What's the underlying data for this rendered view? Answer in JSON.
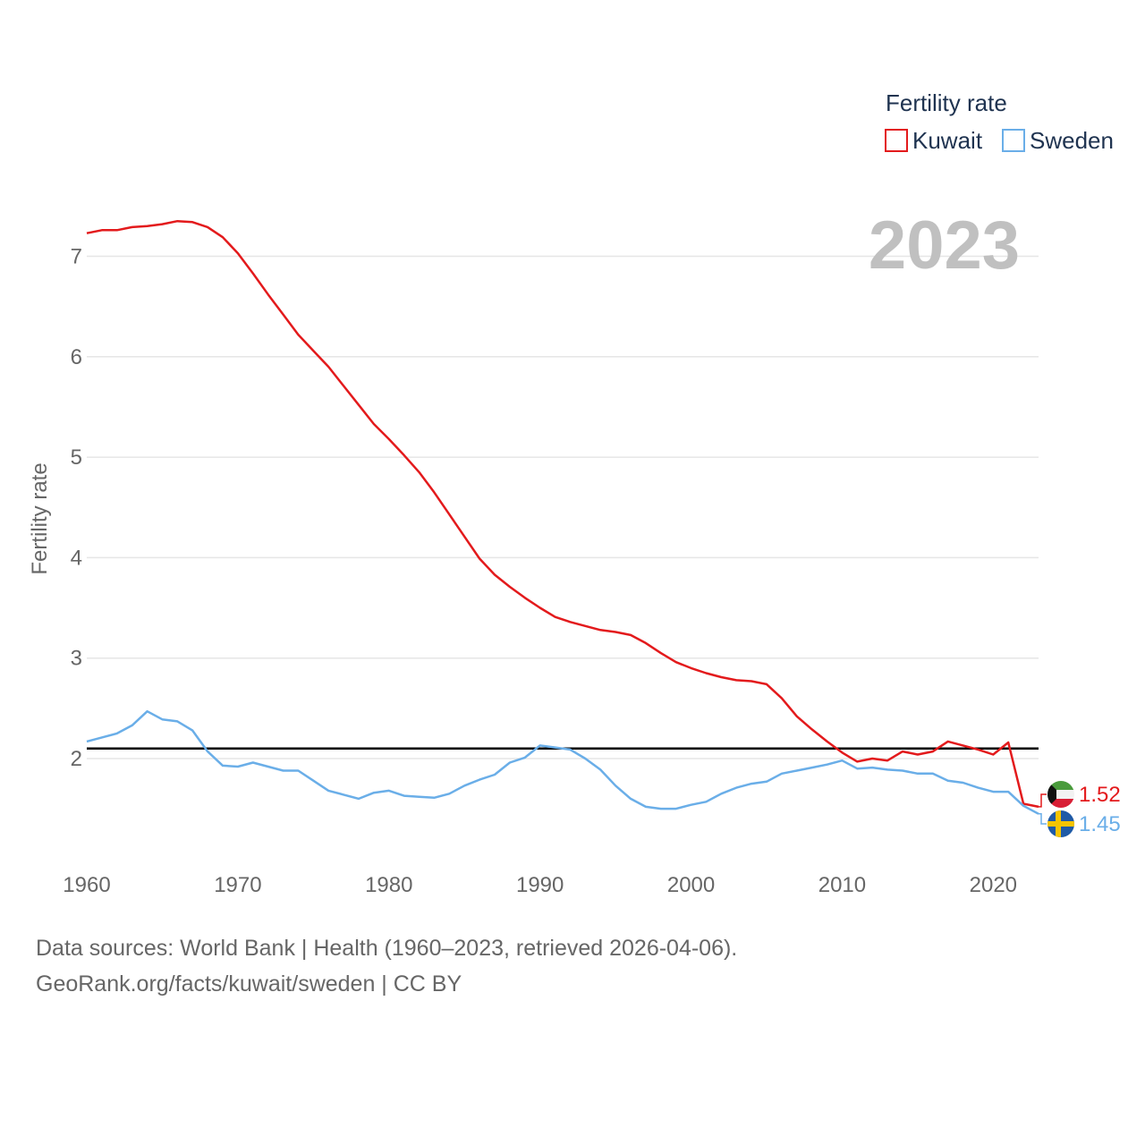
{
  "chart_data": {
    "type": "line",
    "ylabel": "Fertility rate",
    "xlabel": "",
    "xlim": [
      1960,
      2023
    ],
    "ylim": [
      1.0,
      7.5
    ],
    "yticks": [
      2,
      3,
      4,
      5,
      6,
      7
    ],
    "xticks": [
      1960,
      1970,
      1980,
      1990,
      2000,
      2010,
      2020
    ],
    "grid": true,
    "legend": {
      "title": "Fertility rate",
      "position": "top-right"
    },
    "year_label": "2023",
    "reference_line": {
      "y": 2.1,
      "color": "#000000"
    },
    "x": [
      1960,
      1961,
      1962,
      1963,
      1964,
      1965,
      1966,
      1967,
      1968,
      1969,
      1970,
      1971,
      1972,
      1973,
      1974,
      1975,
      1976,
      1977,
      1978,
      1979,
      1980,
      1981,
      1982,
      1983,
      1984,
      1985,
      1986,
      1987,
      1988,
      1989,
      1990,
      1991,
      1992,
      1993,
      1994,
      1995,
      1996,
      1997,
      1998,
      1999,
      2000,
      2001,
      2002,
      2003,
      2004,
      2005,
      2006,
      2007,
      2008,
      2009,
      2010,
      2011,
      2012,
      2013,
      2014,
      2015,
      2016,
      2017,
      2018,
      2019,
      2020,
      2021,
      2022,
      2023
    ],
    "series": [
      {
        "name": "Kuwait",
        "color": "#e31a1c",
        "end_label": "1.52",
        "flag": "kuwait-flag",
        "values": [
          7.23,
          7.26,
          7.26,
          7.29,
          7.3,
          7.32,
          7.35,
          7.34,
          7.29,
          7.19,
          7.03,
          6.83,
          6.62,
          6.42,
          6.22,
          6.06,
          5.9,
          5.71,
          5.52,
          5.33,
          5.18,
          5.02,
          4.85,
          4.65,
          4.43,
          4.21,
          3.99,
          3.83,
          3.71,
          3.6,
          3.5,
          3.41,
          3.36,
          3.32,
          3.28,
          3.26,
          3.23,
          3.15,
          3.05,
          2.96,
          2.9,
          2.85,
          2.81,
          2.78,
          2.77,
          2.74,
          2.6,
          2.42,
          2.29,
          2.17,
          2.06,
          1.97,
          2.0,
          1.98,
          2.07,
          2.04,
          2.07,
          2.17,
          2.13,
          2.09,
          2.04,
          2.16,
          1.55,
          1.52
        ]
      },
      {
        "name": "Sweden",
        "color": "#6aaee8",
        "end_label": "1.45",
        "flag": "sweden-flag",
        "values": [
          2.17,
          2.21,
          2.25,
          2.33,
          2.47,
          2.39,
          2.37,
          2.28,
          2.07,
          1.93,
          1.92,
          1.96,
          1.92,
          1.88,
          1.88,
          1.78,
          1.68,
          1.64,
          1.6,
          1.66,
          1.68,
          1.63,
          1.62,
          1.61,
          1.65,
          1.73,
          1.79,
          1.84,
          1.96,
          2.01,
          2.13,
          2.11,
          2.09,
          2.0,
          1.89,
          1.73,
          1.6,
          1.52,
          1.5,
          1.5,
          1.54,
          1.57,
          1.65,
          1.71,
          1.75,
          1.77,
          1.85,
          1.88,
          1.91,
          1.94,
          1.98,
          1.9,
          1.91,
          1.89,
          1.88,
          1.85,
          1.85,
          1.78,
          1.76,
          1.71,
          1.67,
          1.67,
          1.53,
          1.45
        ]
      }
    ]
  },
  "footer": {
    "source_line": "Data sources: World Bank | Health (1960–2023, retrieved 2026-04-06).",
    "attribution_line": "GeoRank.org/facts/kuwait/sweden | CC BY"
  }
}
